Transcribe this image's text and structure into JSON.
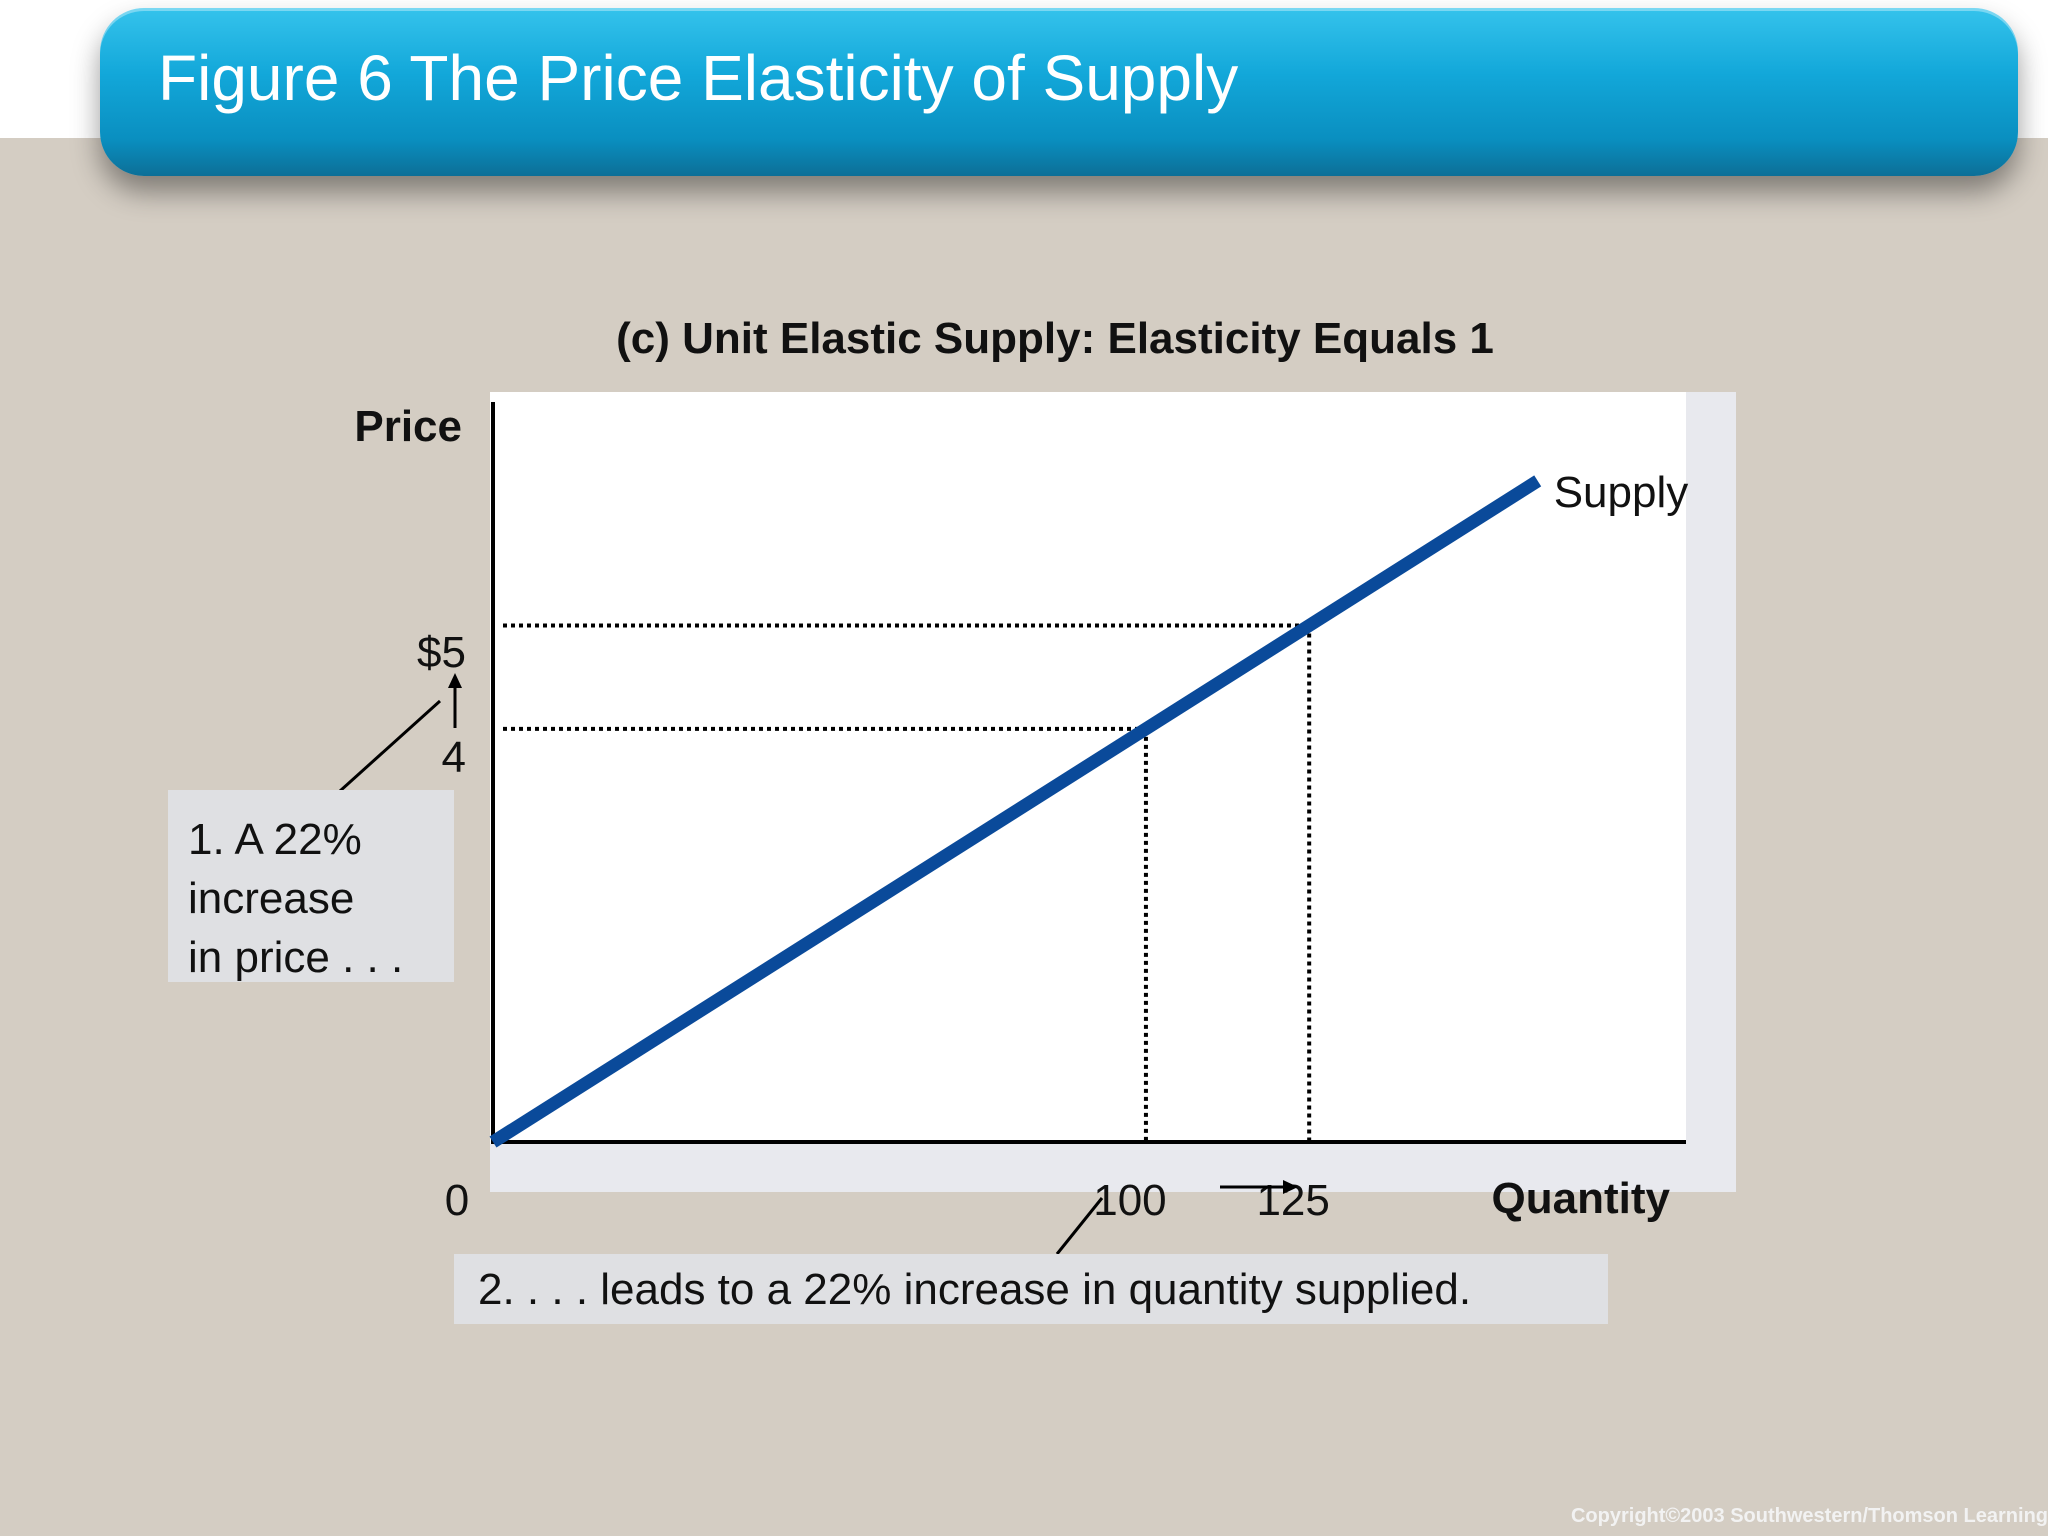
{
  "slide": {
    "title": "Figure 6 The Price Elasticity of Supply",
    "copyright": "Copyright©2003  Southwestern/Thomson Learning"
  },
  "annotations": {
    "price_change_lines": [
      "1. A 22%",
      "increase",
      "in price . . ."
    ],
    "quantity_change": "2.  . . . leads to a 22% increase in quantity supplied."
  },
  "colors": {
    "supply_line": "#0a4a9a",
    "banner": "#12a7d9",
    "background": "#d4cdc3"
  },
  "chart_data": {
    "type": "line",
    "title": "(c) Unit Elastic Supply: Elasticity Equals 1",
    "xlabel": "Quantity",
    "ylabel": "Price",
    "origin_label": "0",
    "xlim": [
      0,
      170
    ],
    "ylim": [
      0,
      9.1
    ],
    "series": [
      {
        "name": "Supply",
        "x": [
          0,
          160
        ],
        "y": [
          0,
          6.4
        ]
      }
    ],
    "reference_points": [
      {
        "x": 100,
        "y": 4,
        "x_label": "100",
        "y_label": "4"
      },
      {
        "x": 125,
        "y": 5,
        "x_label": "125",
        "y_label": "$5"
      }
    ],
    "grid": false
  }
}
